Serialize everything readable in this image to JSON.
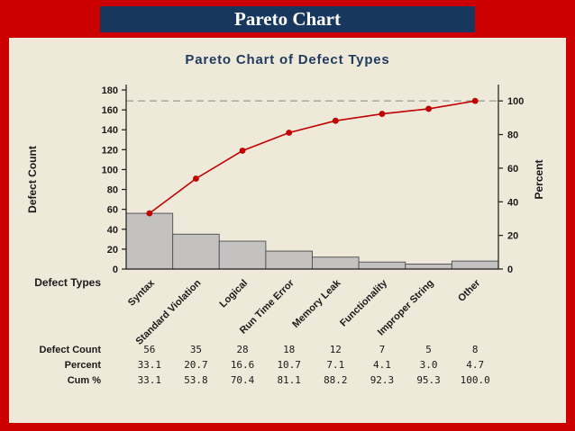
{
  "header": {
    "title": "Pareto Chart"
  },
  "chart_data": {
    "type": "bar",
    "subtype": "pareto",
    "title": "Pareto Chart of Defect Types",
    "xlabel": "Defect Types",
    "ylabel_left": "Defect Count",
    "ylabel_right": "Percent",
    "categories": [
      "Syntax",
      "Standard Violation",
      "Logical",
      "Run Time Error",
      "Memory Leak",
      "Functionality",
      "Improper String",
      "Other"
    ],
    "series": [
      {
        "name": "Defect Count",
        "type": "bar",
        "values": [
          56,
          35,
          28,
          18,
          12,
          7,
          5,
          8
        ]
      },
      {
        "name": "Cum %",
        "type": "line",
        "values": [
          33.1,
          53.8,
          70.4,
          81.1,
          88.2,
          92.3,
          95.3,
          100.0
        ]
      }
    ],
    "y_left": {
      "min": 0,
      "max": 180,
      "step": 20
    },
    "y_right": {
      "min": 0,
      "max": 100,
      "step": 20
    },
    "total_count": 169,
    "reference_line_percent": 100,
    "grid": false,
    "table": {
      "rows": [
        {
          "label": "Defect Count",
          "values": [
            "56",
            "35",
            "28",
            "18",
            "12",
            "7",
            "5",
            "8"
          ]
        },
        {
          "label": "Percent",
          "values": [
            "33.1",
            "20.7",
            "16.6",
            "10.7",
            "7.1",
            "4.1",
            "3.0",
            "4.7"
          ]
        },
        {
          "label": "Cum %",
          "values": [
            "33.1",
            "53.8",
            "70.4",
            "81.1",
            "88.2",
            "92.3",
            "95.3",
            "100.0"
          ]
        }
      ]
    },
    "colors": {
      "frame": "#cc0000",
      "header_bg": "#17375e",
      "header_text": "#ffffff",
      "panel_bg": "#efe9da",
      "title_color": "#1f3a5f",
      "bar_fill": "#c3c2c0",
      "bar_stroke": "#58585a",
      "line": "#c00000",
      "reference_line": "#9a9a94"
    }
  }
}
